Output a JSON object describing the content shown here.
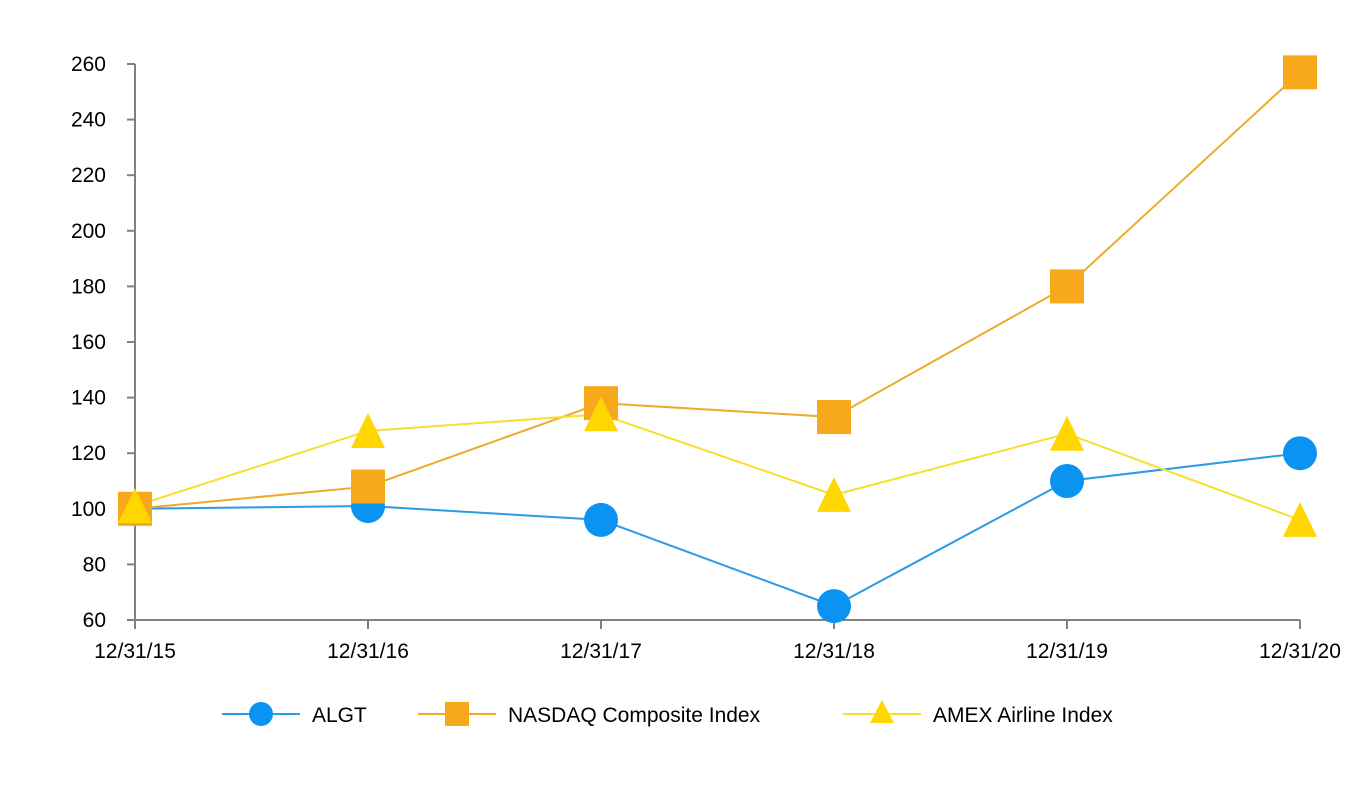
{
  "chart_data": {
    "type": "line",
    "title": "",
    "xlabel": "",
    "ylabel": "",
    "categories": [
      "12/31/15",
      "12/31/16",
      "12/31/17",
      "12/31/18",
      "12/31/19",
      "12/31/20"
    ],
    "ylim": [
      60,
      260
    ],
    "yticks": [
      60,
      80,
      100,
      120,
      140,
      160,
      180,
      200,
      220,
      240,
      260
    ],
    "grid": false,
    "legend_position": "bottom",
    "series": [
      {
        "name": "ALGT",
        "marker": "circle",
        "color": "#0a93f0",
        "line_color": "#2b9be3",
        "values": [
          100,
          101,
          96,
          65,
          110,
          120
        ]
      },
      {
        "name": "NASDAQ Composite Index",
        "marker": "square",
        "color": "#f7a81b",
        "line_color": "#efaa2e",
        "values": [
          100,
          108,
          138,
          133,
          180,
          257
        ]
      },
      {
        "name": "AMEX Airline Index",
        "marker": "triangle",
        "color": "#ffd600",
        "line_color": "#f7df2e",
        "values": [
          101,
          128,
          134,
          105,
          127,
          96
        ]
      }
    ]
  }
}
